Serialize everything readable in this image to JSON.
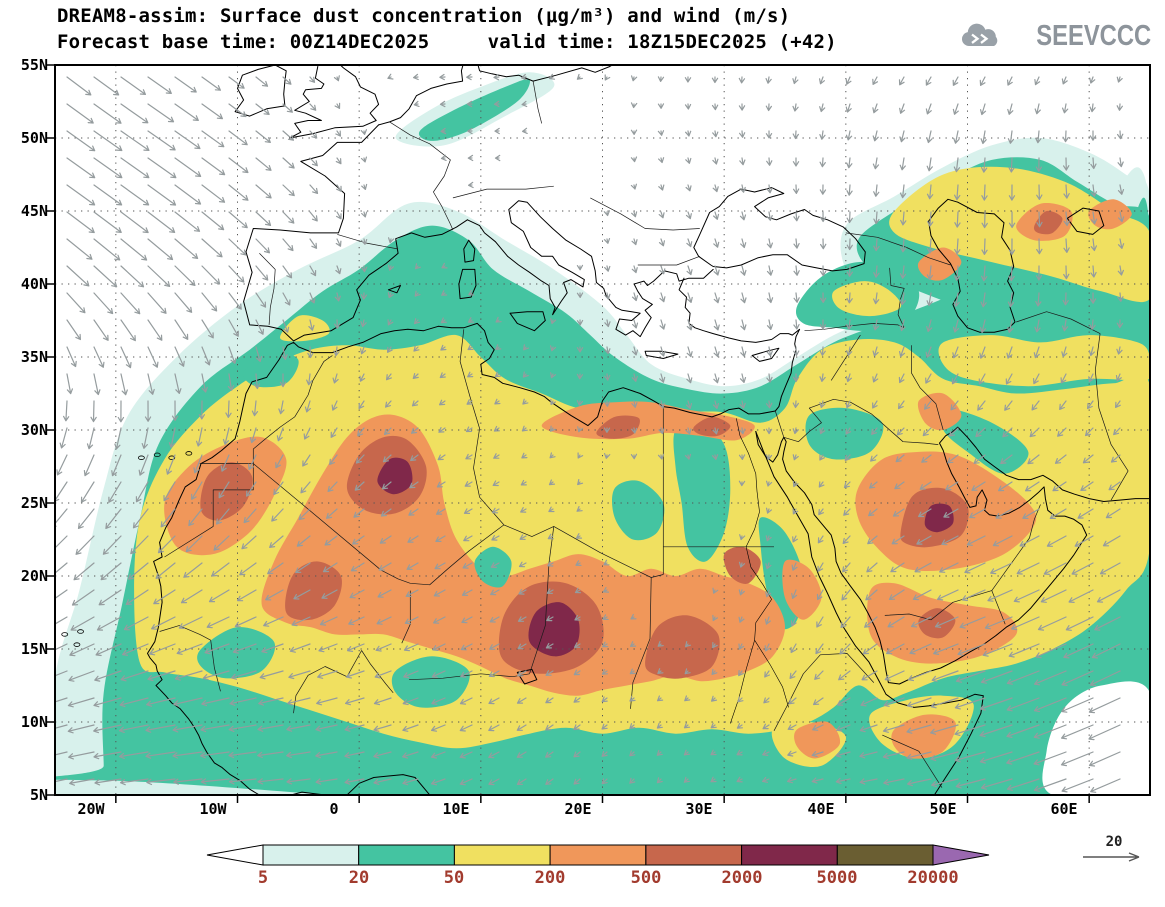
{
  "header": {
    "title_line1": "DREAM8-assim: Surface dust concentration (μg/m³) and wind (m/s)",
    "title_line2": "Forecast base time: 00Z14DEC2025     valid time: 18Z15DEC2025 (+42)"
  },
  "logo": {
    "text": "SEEVCCC"
  },
  "map": {
    "lat_ticks": [
      "55N",
      "50N",
      "45N",
      "40N",
      "35N",
      "30N",
      "25N",
      "20N",
      "15N",
      "10N",
      "5N"
    ],
    "lon_ticks": [
      "20W",
      "10W",
      "0",
      "10E",
      "20E",
      "30E",
      "40E",
      "50E",
      "60E"
    ]
  },
  "colorbar": {
    "labels": [
      "5",
      "20",
      "50",
      "200",
      "500",
      "2000",
      "5000",
      "20000"
    ],
    "colors": [
      "#ffffff",
      "#d8f1ec",
      "#44c4a1",
      "#f0e060",
      "#f0975a",
      "#c7674c",
      "#80284a",
      "#6a5e32",
      "#9a68b0"
    ],
    "label_color": "#a23b2e"
  },
  "wind_ref": {
    "label": "20"
  },
  "chart_data": {
    "type": "heatmap",
    "subtype": "filled-contour-geographic-map-with-wind-vectors",
    "model": "DREAM8-assim",
    "title": "DREAM8-assim: Surface dust concentration (μg/m³) and wind (m/s)",
    "variable": "Surface dust concentration",
    "units": "μg/m³",
    "wind_variable": "wind",
    "wind_units": "m/s",
    "wind_reference_value": 20,
    "forecast_base_time": "00Z14DEC2025",
    "valid_time": "18Z15DEC2025",
    "lead_time": "+42",
    "lon_range_deg": [
      -25,
      65
    ],
    "lat_range_deg": [
      5,
      55
    ],
    "lon_ticks_deg": [
      -20,
      -10,
      0,
      10,
      20,
      30,
      40,
      50,
      60
    ],
    "lat_ticks_deg": [
      55,
      50,
      45,
      40,
      35,
      30,
      25,
      20,
      15,
      10,
      5
    ],
    "contour_levels": [
      5,
      20,
      50,
      200,
      500,
      2000,
      5000,
      20000
    ],
    "band_colors": [
      "#ffffff",
      "#d8f1ec",
      "#44c4a1",
      "#f0e060",
      "#f0975a",
      "#c7674c",
      "#80284a",
      "#6a5e32",
      "#9a68b0"
    ],
    "grid": "dotted graticule every 5 deg lat / 10 deg lon",
    "legend_position": "bottom horizontal colorbar with pointed ends",
    "notable_features": [
      "Dust maxima 2000-5000 μg/m³ over the Bodele region of Chad (~14-18N, 13-19E)",
      "Secondary dark cores over central Algeria (~25-29N, 0-6E), Western Sahara (~24-28N, 13-9W) and central Saudi Arabia (~22-26N, 44-50E)",
      "Broad 500-2000 μg/m³ belt across the Sahel and Sahara and along the Libya/Egypt coast",
      "Extensive 50-200 μg/m³ (yellow) plume covering the Sahara, Sahel, Middle East and Arabian Peninsula",
      "20-50 μg/m³ (green) dust spreading over the western Mediterranean, Iberia, eastern Turkey, the Caucasus and Caspian region",
      "Strong gray wind vectors over the NE Atlantic, tropical Atlantic and Arabian Sea; reference arrow = 20 m/s"
    ]
  }
}
